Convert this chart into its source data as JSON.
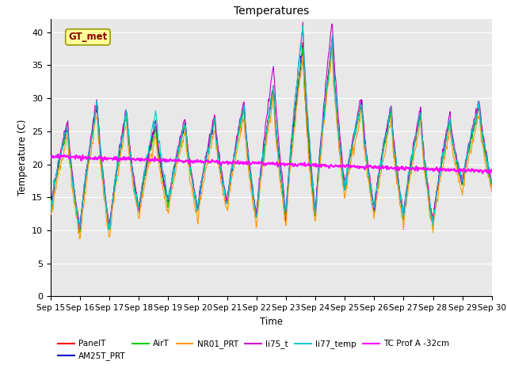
{
  "title": "Temperatures",
  "xlabel": "Time",
  "ylabel": "Temperature (C)",
  "ylim": [
    0,
    42
  ],
  "yticks": [
    0,
    5,
    10,
    15,
    20,
    25,
    30,
    35,
    40
  ],
  "xtick_labels": [
    "Sep 15",
    "Sep 16",
    "Sep 17",
    "Sep 18",
    "Sep 19",
    "Sep 20",
    "Sep 21",
    "Sep 22",
    "Sep 23",
    "Sep 24",
    "Sep 25",
    "Sep 26",
    "Sep 27",
    "Sep 28",
    "Sep 29",
    "Sep 30"
  ],
  "series_colors": {
    "PanelT": "#ff0000",
    "AM25T_PRT": "#0000cc",
    "AirT": "#00cc00",
    "NR01_PRT": "#ff9900",
    "li75_t": "#cc00cc",
    "li77_temp": "#00cccc",
    "TC Prof A -32cm": "#ff00ff"
  },
  "background_color": "#e8e8e8",
  "gt_met_box_color": "#ffff99",
  "gt_met_text_color": "#8b0000",
  "annotation_text": "GT_met"
}
